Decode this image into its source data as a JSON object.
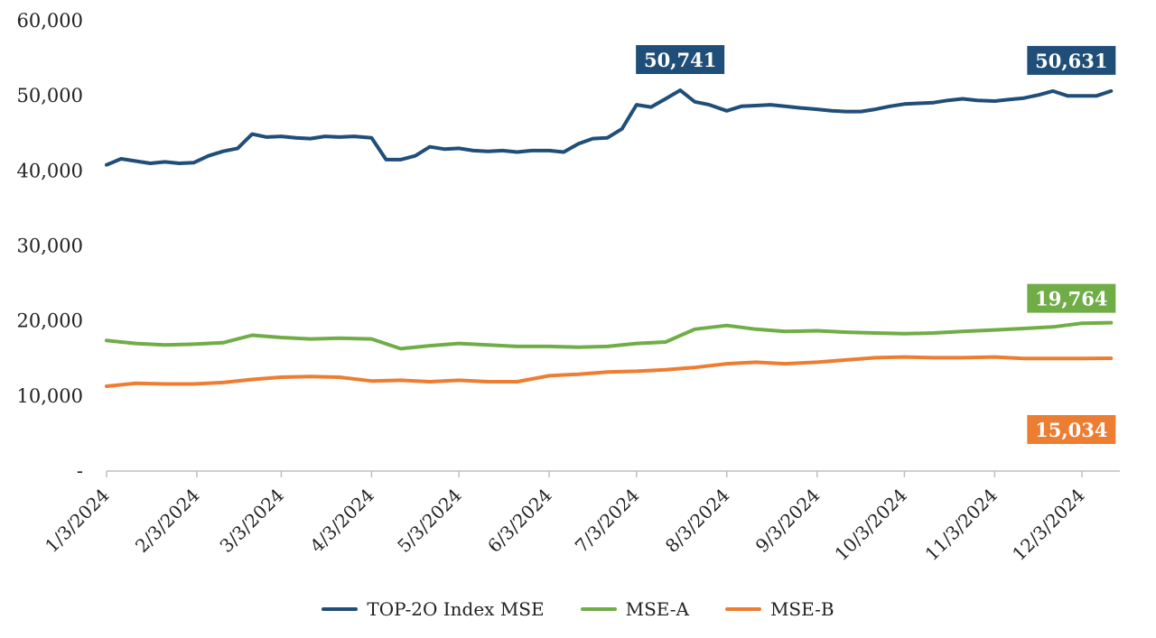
{
  "chart_data": {
    "type": "line",
    "y_ticks": [
      "60,000",
      "50,000",
      "40,000",
      "30,000",
      "20,000",
      "10,000",
      "-"
    ],
    "ylim": [
      0,
      60000
    ],
    "x_ticks": [
      "1/3/2024",
      "2/3/2024",
      "3/3/2024",
      "4/3/2024",
      "5/3/2024",
      "6/3/2024",
      "7/3/2024",
      "8/3/2024",
      "9/3/2024",
      "10/3/2024",
      "11/3/2024",
      "12/3/2024"
    ],
    "grid": false,
    "legend_position": "bottom",
    "series": [
      {
        "name": "TOP-2O Index MSE",
        "color": "#1f4e79",
        "x": [
          "2024-01-03",
          "2024-01-08",
          "2024-01-13",
          "2024-01-18",
          "2024-01-23",
          "2024-01-28",
          "2024-02-02",
          "2024-02-07",
          "2024-02-12",
          "2024-02-17",
          "2024-02-22",
          "2024-02-27",
          "2024-03-03",
          "2024-03-08",
          "2024-03-13",
          "2024-03-18",
          "2024-03-23",
          "2024-03-28",
          "2024-04-03",
          "2024-04-08",
          "2024-04-13",
          "2024-04-18",
          "2024-04-23",
          "2024-04-28",
          "2024-05-03",
          "2024-05-08",
          "2024-05-13",
          "2024-05-18",
          "2024-05-23",
          "2024-05-28",
          "2024-06-03",
          "2024-06-08",
          "2024-06-13",
          "2024-06-18",
          "2024-06-23",
          "2024-06-28",
          "2024-07-03",
          "2024-07-08",
          "2024-07-13",
          "2024-07-18",
          "2024-07-23",
          "2024-07-28",
          "2024-08-03",
          "2024-08-08",
          "2024-08-13",
          "2024-08-18",
          "2024-08-23",
          "2024-08-28",
          "2024-09-03",
          "2024-09-08",
          "2024-09-13",
          "2024-09-18",
          "2024-09-23",
          "2024-09-28",
          "2024-10-03",
          "2024-10-08",
          "2024-10-13",
          "2024-10-18",
          "2024-10-23",
          "2024-10-28",
          "2024-11-03",
          "2024-11-08",
          "2024-11-13",
          "2024-11-18",
          "2024-11-23",
          "2024-11-28",
          "2024-12-03",
          "2024-12-08",
          "2024-12-13"
        ],
        "values": [
          40800,
          41600,
          41300,
          41000,
          41200,
          41000,
          41100,
          42000,
          42600,
          43000,
          44900,
          44500,
          44600,
          44400,
          44300,
          44600,
          44500,
          44600,
          44400,
          41500,
          41500,
          42000,
          43200,
          42900,
          43000,
          42700,
          42600,
          42700,
          42500,
          42700,
          42700,
          42500,
          43600,
          44300,
          44400,
          45600,
          48800,
          48500,
          49600,
          50741,
          49200,
          48800,
          48000,
          48600,
          48700,
          48800,
          48600,
          48400,
          48200,
          48000,
          47900,
          47900,
          48200,
          48600,
          48900,
          49000,
          49100,
          49400,
          49600,
          49400,
          49300,
          49500,
          49700,
          50100,
          50631,
          50000,
          50000,
          50000,
          50631
        ]
      },
      {
        "name": "MSE-A",
        "color": "#70ad47",
        "x": [
          "2024-01-03",
          "2024-01-13",
          "2024-01-23",
          "2024-02-02",
          "2024-02-12",
          "2024-02-22",
          "2024-03-03",
          "2024-03-13",
          "2024-03-23",
          "2024-04-03",
          "2024-04-13",
          "2024-04-23",
          "2024-05-03",
          "2024-05-13",
          "2024-05-23",
          "2024-06-03",
          "2024-06-13",
          "2024-06-23",
          "2024-07-03",
          "2024-07-13",
          "2024-07-23",
          "2024-08-03",
          "2024-08-13",
          "2024-08-23",
          "2024-09-03",
          "2024-09-13",
          "2024-09-23",
          "2024-10-03",
          "2024-10-13",
          "2024-10-23",
          "2024-11-03",
          "2024-11-13",
          "2024-11-23",
          "2024-12-03",
          "2024-12-13"
        ],
        "values": [
          17400,
          17000,
          16800,
          16900,
          17100,
          18100,
          17800,
          17600,
          17700,
          17600,
          16300,
          16700,
          17000,
          16800,
          16600,
          16600,
          16500,
          16600,
          17000,
          17200,
          18900,
          19400,
          18900,
          18600,
          18700,
          18500,
          18400,
          18300,
          18400,
          18600,
          18800,
          19000,
          19200,
          19700,
          19764
        ]
      },
      {
        "name": "MSE-B",
        "color": "#ed7d31",
        "x": [
          "2024-01-03",
          "2024-01-13",
          "2024-01-23",
          "2024-02-02",
          "2024-02-12",
          "2024-02-22",
          "2024-03-03",
          "2024-03-13",
          "2024-03-23",
          "2024-04-03",
          "2024-04-13",
          "2024-04-23",
          "2024-05-03",
          "2024-05-13",
          "2024-05-23",
          "2024-06-03",
          "2024-06-13",
          "2024-06-23",
          "2024-07-03",
          "2024-07-13",
          "2024-07-23",
          "2024-08-03",
          "2024-08-13",
          "2024-08-23",
          "2024-09-03",
          "2024-09-13",
          "2024-09-23",
          "2024-10-03",
          "2024-10-13",
          "2024-10-23",
          "2024-11-03",
          "2024-11-13",
          "2024-11-23",
          "2024-12-03",
          "2024-12-13"
        ],
        "values": [
          11300,
          11700,
          11600,
          11600,
          11800,
          12200,
          12500,
          12600,
          12500,
          12000,
          12100,
          11900,
          12100,
          11900,
          11900,
          12700,
          12900,
          13200,
          13300,
          13500,
          13800,
          14300,
          14500,
          14300,
          14500,
          14800,
          15100,
          15200,
          15100,
          15100,
          15200,
          15000,
          15000,
          15000,
          15034
        ]
      }
    ],
    "callouts": [
      {
        "label": "50,741",
        "series": 0,
        "date": "2024-07-18",
        "value": 50741
      },
      {
        "label": "50,631",
        "series": 0,
        "date": "2024-12-13",
        "value": 50631
      },
      {
        "label": "19,764",
        "series": 1,
        "date": "2024-12-13",
        "value": 19764
      },
      {
        "label": "15,034",
        "series": 2,
        "date": "2024-12-13",
        "value": 15034
      }
    ]
  }
}
